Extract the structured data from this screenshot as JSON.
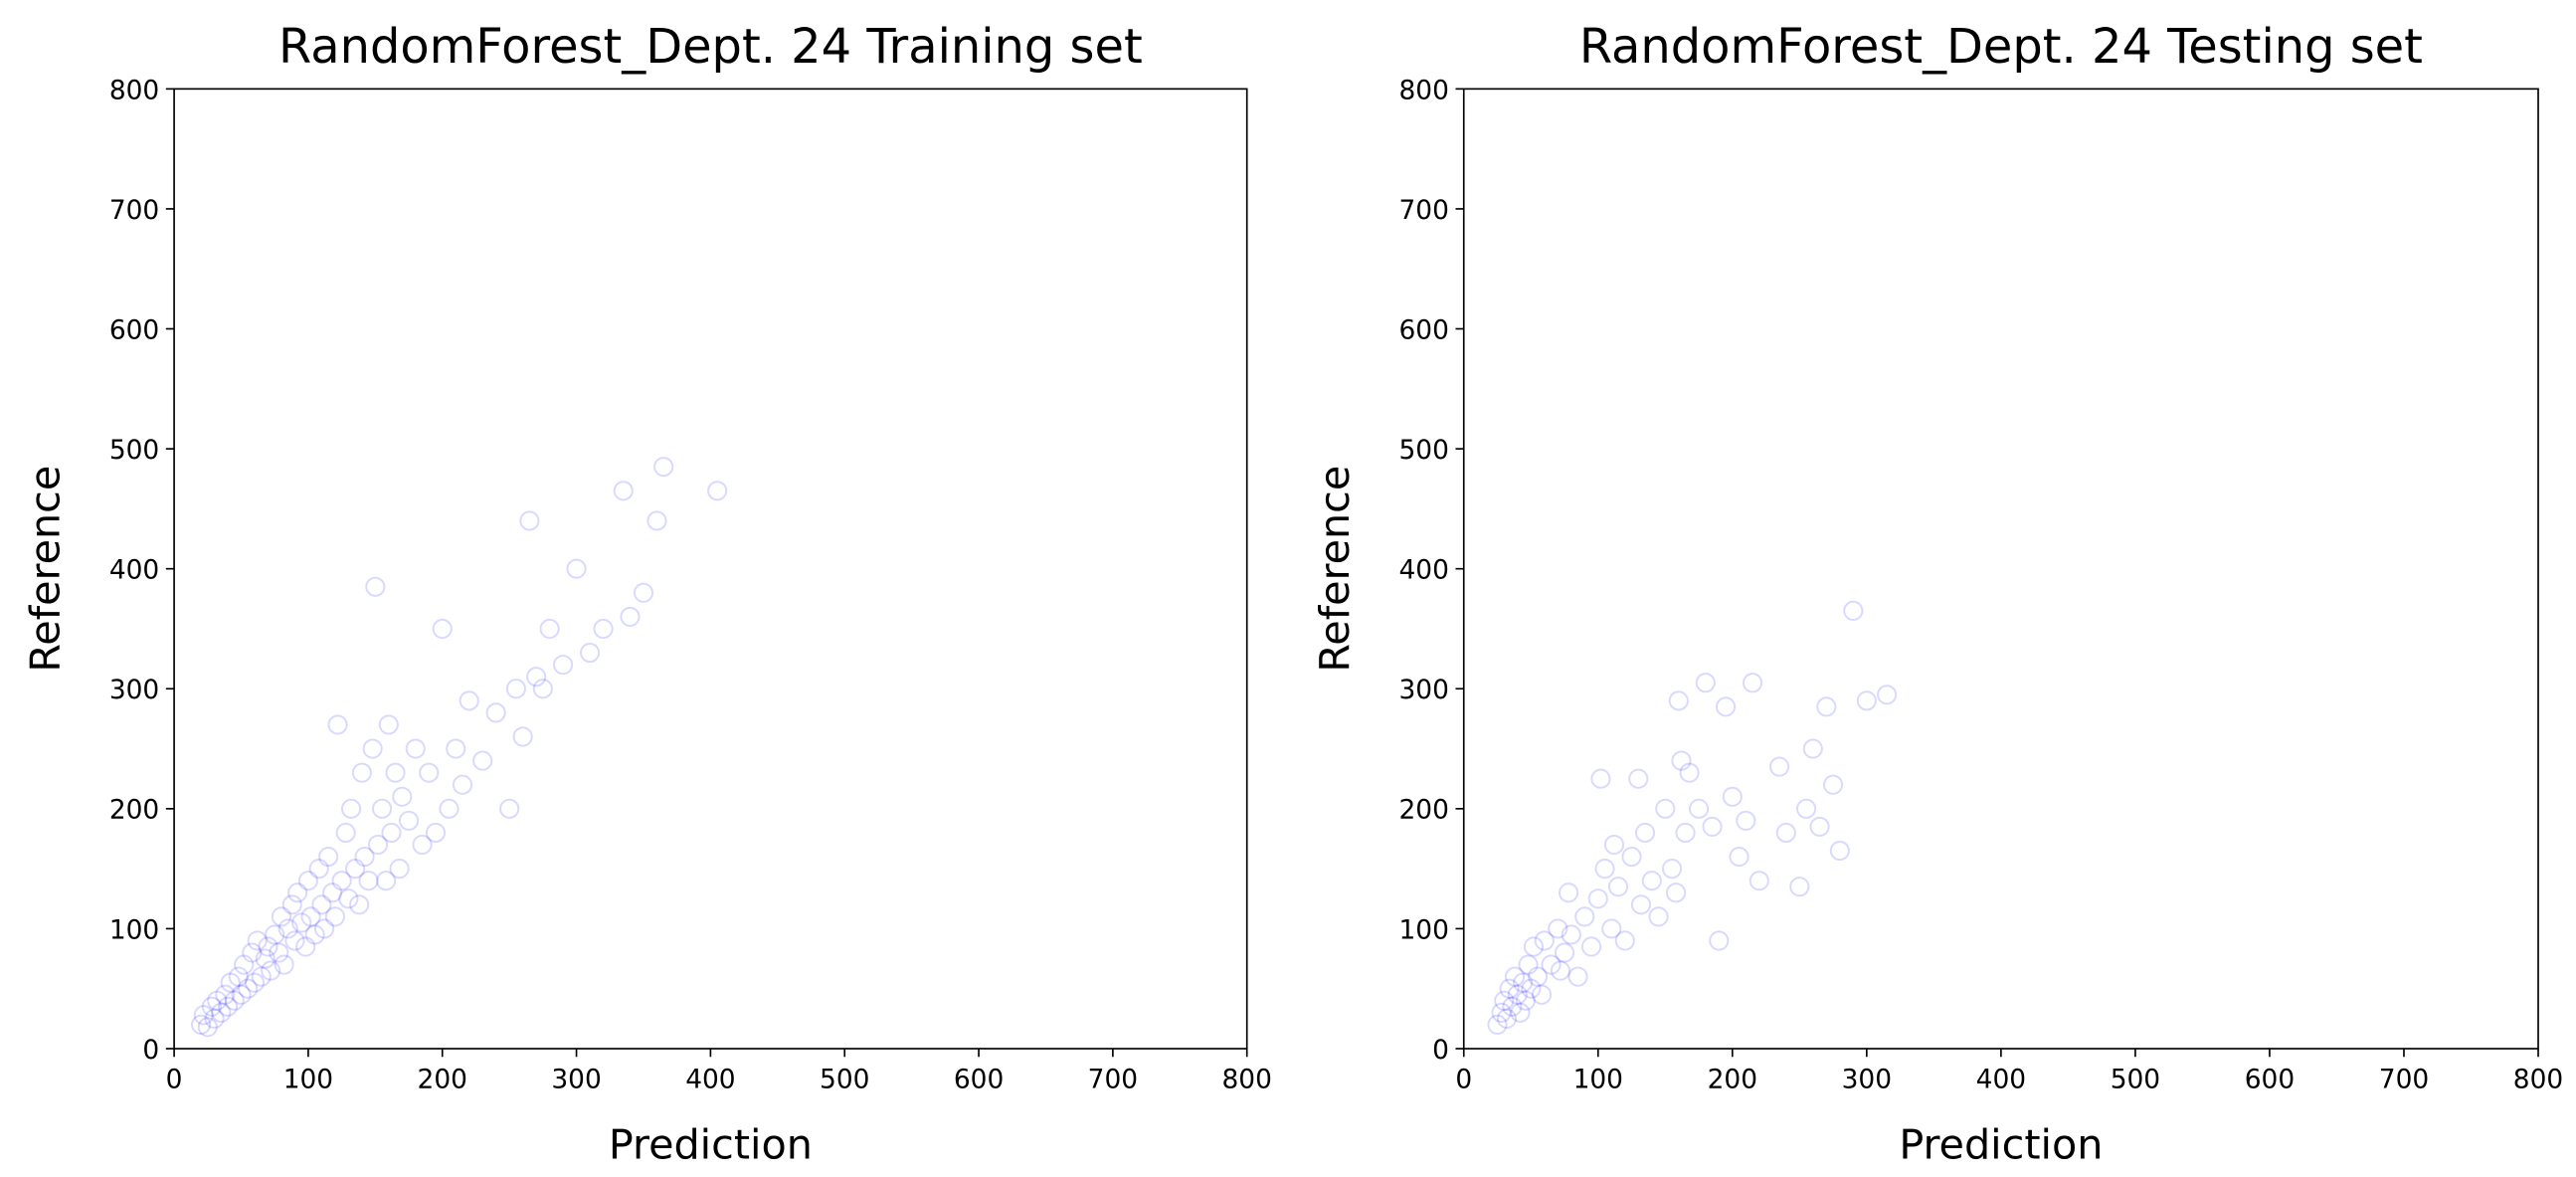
{
  "chart_data": [
    {
      "type": "scatter",
      "title": "RandomForest_Dept. 24 Training set",
      "xlabel": "Prediction",
      "ylabel": "Reference",
      "color": "#0000ff",
      "x": [
        20,
        22,
        25,
        28,
        30,
        32,
        35,
        38,
        40,
        42,
        45,
        48,
        50,
        52,
        55,
        58,
        60,
        62,
        65,
        68,
        70,
        72,
        75,
        78,
        80,
        82,
        85,
        88,
        90,
        92,
        95,
        98,
        100,
        102,
        105,
        108,
        110,
        112,
        115,
        118,
        120,
        122,
        125,
        128,
        130,
        132,
        135,
        138,
        140,
        142,
        145,
        148,
        150,
        152,
        155,
        158,
        160,
        162,
        165,
        168,
        170,
        175,
        180,
        185,
        190,
        195,
        200,
        205,
        210,
        215,
        220,
        230,
        240,
        250,
        255,
        260,
        265,
        270,
        275,
        280,
        290,
        300,
        310,
        320,
        335,
        340,
        350,
        360,
        365,
        405
      ],
      "y": [
        20,
        28,
        18,
        35,
        25,
        40,
        30,
        45,
        35,
        55,
        40,
        60,
        45,
        70,
        50,
        80,
        55,
        90,
        60,
        75,
        85,
        65,
        95,
        80,
        110,
        70,
        100,
        120,
        90,
        130,
        105,
        85,
        140,
        110,
        95,
        150,
        120,
        100,
        160,
        130,
        110,
        270,
        140,
        180,
        125,
        200,
        150,
        120,
        230,
        160,
        140,
        250,
        385,
        170,
        200,
        140,
        270,
        180,
        230,
        150,
        210,
        190,
        250,
        170,
        230,
        180,
        350,
        200,
        250,
        220,
        290,
        240,
        280,
        200,
        300,
        260,
        440,
        310,
        300,
        350,
        320,
        400,
        330,
        350,
        465,
        360,
        380,
        440,
        485,
        465
      ],
      "xlim": [
        0,
        800
      ],
      "ylim": [
        0,
        800
      ],
      "xticks": [
        0,
        100,
        200,
        300,
        400,
        500,
        600,
        700,
        800
      ],
      "yticks": [
        0,
        100,
        200,
        300,
        400,
        500,
        600,
        700,
        800
      ]
    },
    {
      "type": "scatter",
      "title": "RandomForest_Dept. 24 Testing set",
      "xlabel": "Prediction",
      "ylabel": "Reference",
      "color": "#0000ff",
      "x": [
        25,
        28,
        30,
        32,
        34,
        36,
        38,
        40,
        42,
        44,
        46,
        48,
        50,
        52,
        55,
        58,
        60,
        65,
        70,
        72,
        75,
        78,
        80,
        85,
        90,
        95,
        100,
        102,
        105,
        110,
        112,
        115,
        120,
        125,
        130,
        132,
        135,
        140,
        145,
        150,
        155,
        158,
        160,
        162,
        165,
        168,
        175,
        180,
        185,
        190,
        195,
        200,
        205,
        210,
        215,
        220,
        235,
        240,
        250,
        255,
        260,
        265,
        270,
        275,
        280,
        290,
        300,
        315
      ],
      "y": [
        20,
        30,
        40,
        25,
        50,
        35,
        60,
        45,
        30,
        55,
        40,
        70,
        50,
        85,
        60,
        45,
        90,
        70,
        100,
        65,
        80,
        130,
        95,
        60,
        110,
        85,
        125,
        225,
        150,
        100,
        170,
        135,
        90,
        160,
        225,
        120,
        180,
        140,
        110,
        200,
        150,
        130,
        290,
        240,
        180,
        230,
        200,
        305,
        185,
        90,
        285,
        210,
        160,
        190,
        305,
        140,
        235,
        180,
        135,
        200,
        250,
        185,
        285,
        220,
        165,
        365,
        290,
        295
      ],
      "xlim": [
        0,
        800
      ],
      "ylim": [
        0,
        800
      ],
      "xticks": [
        0,
        100,
        200,
        300,
        400,
        500,
        600,
        700,
        800
      ],
      "yticks": [
        0,
        100,
        200,
        300,
        400,
        500,
        600,
        700,
        800
      ]
    }
  ]
}
